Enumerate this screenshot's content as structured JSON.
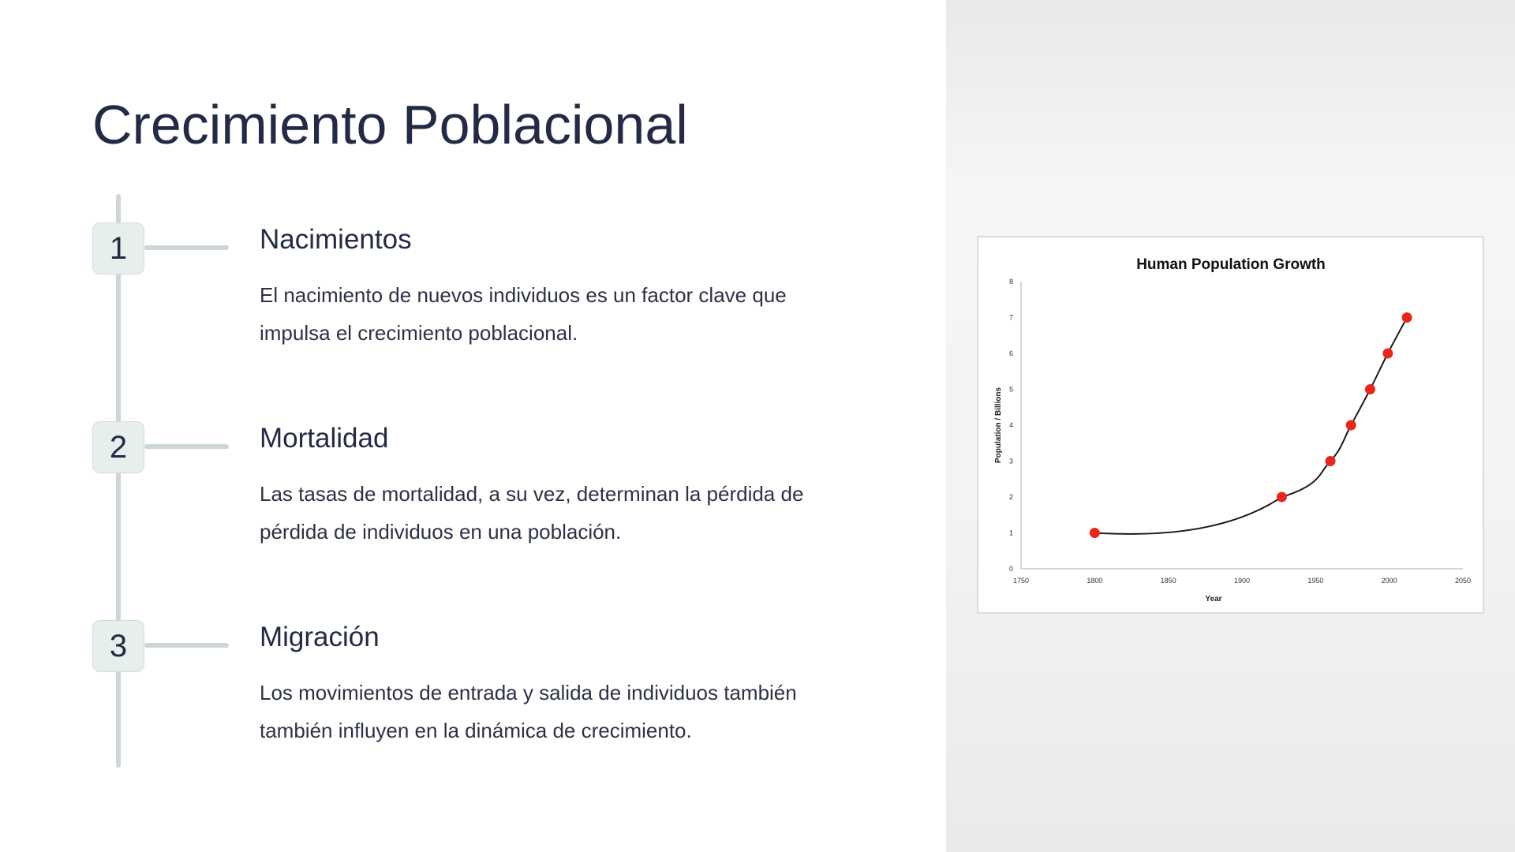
{
  "slide": {
    "title": "Crecimiento Poblacional",
    "steps": [
      {
        "number": "1",
        "title": "Nacimientos",
        "text": "El nacimiento de nuevos individuos es un factor clave que impulsa el crecimiento poblacional."
      },
      {
        "number": "2",
        "title": "Mortalidad",
        "text": "Las tasas de mortalidad, a su vez, determinan la pérdida de pérdida de individuos en una población."
      },
      {
        "number": "3",
        "title": "Migración",
        "text": "Los movimientos de entrada y salida de individuos también también influyen en la dinámica de crecimiento."
      }
    ]
  },
  "chart_data": {
    "type": "scatter",
    "title": "Human Population Growth",
    "xlabel": "Year",
    "ylabel": "Population / Billions",
    "xlim": [
      1750,
      2050
    ],
    "ylim": [
      0,
      8
    ],
    "x_ticks": [
      "1750",
      "1800",
      "1850",
      "1900",
      "1950",
      "2000",
      "2050"
    ],
    "y_ticks": [
      "0",
      "1",
      "2",
      "3",
      "4",
      "5",
      "6",
      "7",
      "8"
    ],
    "grid": false,
    "trendline": true,
    "colors": {
      "points": "#e8261e",
      "line": "#1a1a1a"
    },
    "points": [
      {
        "x": 1800,
        "y": 1
      },
      {
        "x": 1927,
        "y": 2
      },
      {
        "x": 1960,
        "y": 3
      },
      {
        "x": 1974,
        "y": 4
      },
      {
        "x": 1987,
        "y": 5
      },
      {
        "x": 1999,
        "y": 6
      },
      {
        "x": 2012,
        "y": 7
      }
    ]
  }
}
